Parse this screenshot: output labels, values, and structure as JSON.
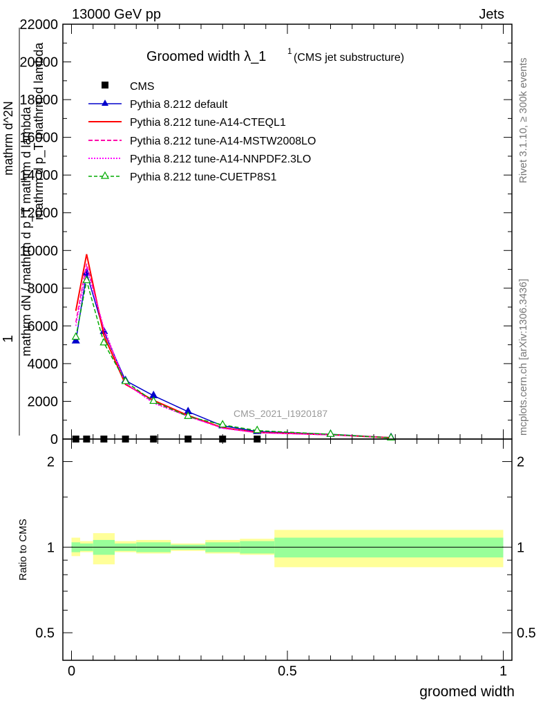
{
  "header": {
    "energy": "13000 GeV pp",
    "category": "Jets",
    "rivet": "Rivet 3.1.10, ≥ 300k events",
    "mcplots": "mcplots.cern.ch [arXiv:1306.3436]",
    "analysis": "CMS_2021_I1920187"
  },
  "chart_data": [
    {
      "type": "line",
      "panel": "main",
      "title": "Groomed width",
      "title_math": "λ_1",
      "title_sup": "1",
      "subtitle": "(CMS jet substructure)",
      "xlabel": "groomed width",
      "ylabel_lines": [
        "1",
        "mathrm dN / mathrm d p_T mathrm d lambda",
        "mathrm d^2N",
        "mathrm d p_T mathrm d lambda"
      ],
      "xlim": [
        -0.02,
        1.02
      ],
      "ylim": [
        0,
        22000
      ],
      "y_ticks": [
        0,
        2000,
        4000,
        6000,
        8000,
        10000,
        12000,
        14000,
        16000,
        18000,
        20000,
        22000
      ],
      "y_tick_labels": [
        "0",
        "2000",
        "4000",
        "6000",
        "8000",
        "10000",
        "12000",
        "14000",
        "16000",
        "18000",
        "20000",
        "22000"
      ],
      "x_ticks": [
        0,
        0.5,
        1
      ],
      "x_tick_labels": [
        "0",
        "0.5",
        "1"
      ],
      "legend_position": "top-left",
      "series": [
        {
          "name": "CMS",
          "style": "data",
          "color": "#000000",
          "x": [
            0.01,
            0.035,
            0.075,
            0.125,
            0.19,
            0.27,
            0.35,
            0.43
          ],
          "y": [
            0,
            0,
            0,
            0,
            0,
            0,
            0,
            0
          ]
        },
        {
          "name": "Pythia 8.212 default",
          "style": "solid",
          "marker": "triangle",
          "color": "#0000cc",
          "x": [
            0.01,
            0.035,
            0.075,
            0.125,
            0.19,
            0.27,
            0.35,
            0.43,
            0.6,
            0.74
          ],
          "y": [
            5200,
            8800,
            5700,
            3100,
            2300,
            1450,
            700,
            400,
            250,
            80
          ]
        },
        {
          "name": "Pythia 8.212 tune-A14-CTEQL1",
          "style": "solid",
          "marker": "none",
          "color": "#ff0000",
          "x": [
            0.01,
            0.035,
            0.075,
            0.125,
            0.19,
            0.27,
            0.35,
            0.43,
            0.6,
            0.74
          ],
          "y": [
            6800,
            9800,
            5500,
            2900,
            2050,
            1250,
            600,
            350,
            230,
            70
          ]
        },
        {
          "name": "Pythia 8.212 tune-A14-MSTW2008LO",
          "style": "dashed",
          "marker": "none",
          "color": "#ff00aa",
          "x": [
            0.01,
            0.035,
            0.075,
            0.125,
            0.19,
            0.27,
            0.35,
            0.43,
            0.6,
            0.74
          ],
          "y": [
            6200,
            9300,
            5800,
            2950,
            1950,
            1200,
            580,
            340,
            220,
            70
          ]
        },
        {
          "name": "Pythia 8.212 tune-A14-NNPDF2.3LO",
          "style": "dotted",
          "marker": "none",
          "color": "#ff00ff",
          "x": [
            0.01,
            0.035,
            0.075,
            0.125,
            0.19,
            0.27,
            0.35,
            0.43,
            0.6,
            0.74
          ],
          "y": [
            6000,
            9100,
            5900,
            2950,
            1900,
            1200,
            570,
            330,
            220,
            70
          ]
        },
        {
          "name": "Pythia 8.212 tune-CUETP8S1",
          "style": "dashed",
          "marker": "open-triangle",
          "color": "#00aa00",
          "x": [
            0.01,
            0.035,
            0.075,
            0.125,
            0.19,
            0.27,
            0.35,
            0.43,
            0.6,
            0.74
          ],
          "y": [
            5400,
            8400,
            5100,
            3050,
            2000,
            1200,
            750,
            450,
            250,
            60
          ]
        }
      ]
    },
    {
      "type": "area",
      "panel": "ratio",
      "ylabel": "Ratio to CMS",
      "xlabel": "groomed width",
      "xlim": [
        -0.02,
        1.02
      ],
      "ylim": [
        0.4,
        2.4
      ],
      "y_ticks": [
        0.5,
        1,
        2
      ],
      "y_tick_labels": [
        "0.5",
        "1",
        "2"
      ],
      "y_scale": "log",
      "x_ticks": [
        0,
        0.5,
        1
      ],
      "x_tick_labels": [
        "0",
        "0.5",
        "1"
      ],
      "ratio_line": 1,
      "bins": [
        {
          "lo": 0.0,
          "hi": 0.02,
          "inner": [
            0.96,
            1.04
          ],
          "outer": [
            0.93,
            1.08
          ]
        },
        {
          "lo": 0.02,
          "hi": 0.05,
          "inner": [
            0.97,
            1.03
          ],
          "outer": [
            0.96,
            1.05
          ]
        },
        {
          "lo": 0.05,
          "hi": 0.1,
          "inner": [
            0.94,
            1.06
          ],
          "outer": [
            0.87,
            1.12
          ]
        },
        {
          "lo": 0.1,
          "hi": 0.15,
          "inner": [
            0.97,
            1.03
          ],
          "outer": [
            0.96,
            1.05
          ]
        },
        {
          "lo": 0.15,
          "hi": 0.23,
          "inner": [
            0.96,
            1.04
          ],
          "outer": [
            0.95,
            1.06
          ]
        },
        {
          "lo": 0.23,
          "hi": 0.31,
          "inner": [
            0.98,
            1.02
          ],
          "outer": [
            0.97,
            1.03
          ]
        },
        {
          "lo": 0.31,
          "hi": 0.39,
          "inner": [
            0.96,
            1.04
          ],
          "outer": [
            0.95,
            1.06
          ]
        },
        {
          "lo": 0.39,
          "hi": 0.47,
          "inner": [
            0.95,
            1.05
          ],
          "outer": [
            0.94,
            1.07
          ]
        },
        {
          "lo": 0.47,
          "hi": 1.0,
          "inner": [
            0.92,
            1.08
          ],
          "outer": [
            0.85,
            1.15
          ]
        }
      ],
      "colors": {
        "inner": "#99ff99",
        "outer": "#ffff99"
      }
    }
  ]
}
